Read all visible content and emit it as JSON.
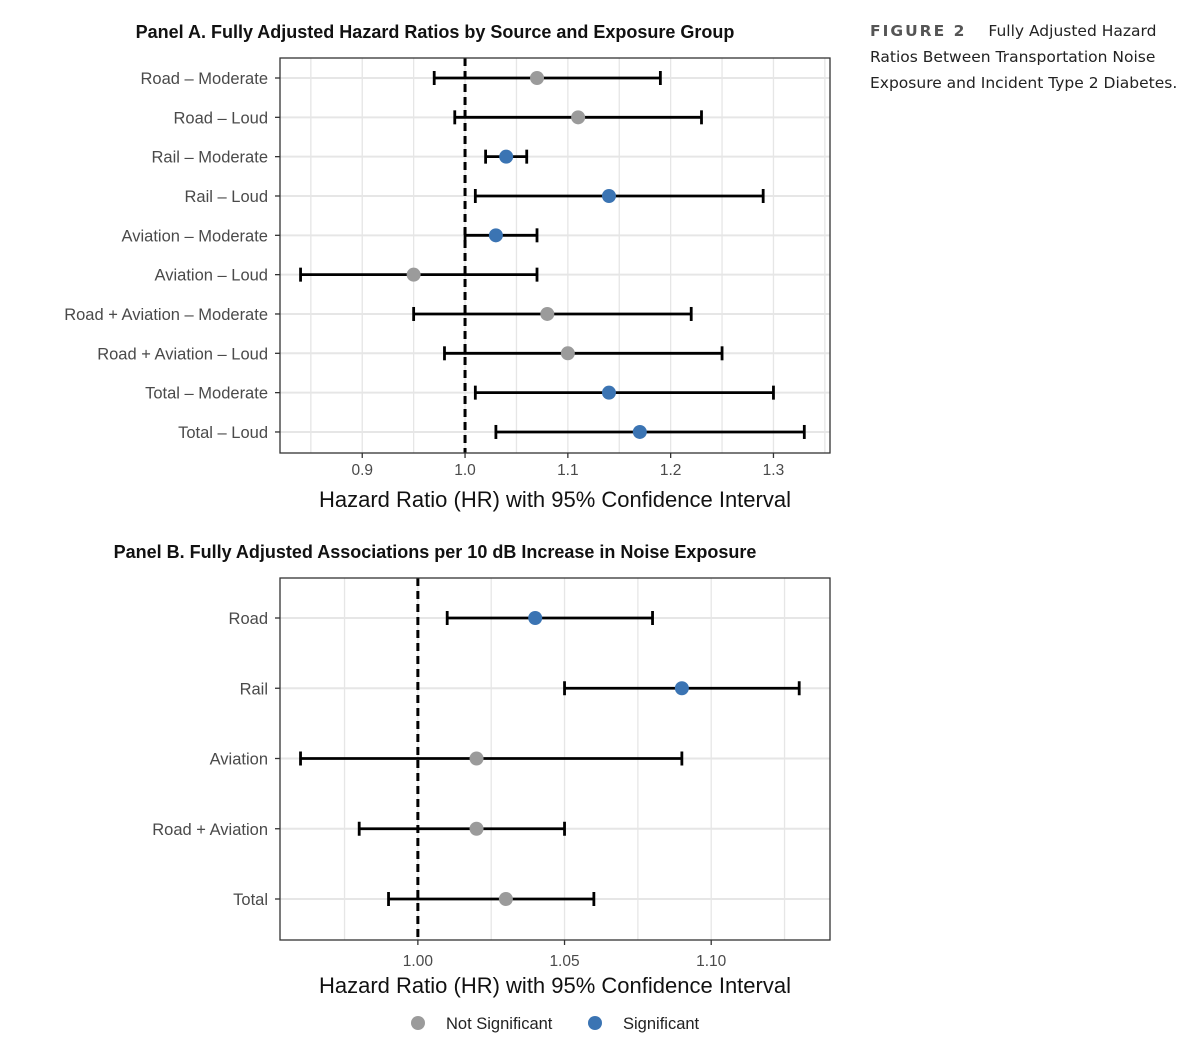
{
  "caption": {
    "label": "FIGURE 2",
    "text": "Fully Adjusted Hazard Ratios Between Transportation Noise Exposure and Incident Type 2 Diabetes."
  },
  "colors": {
    "significant": "#3b74b3",
    "not_significant": "#9b9b9b",
    "grid": "#e6e6e6",
    "bar": "#000000"
  },
  "chart_data": [
    {
      "type": "scatter",
      "subtype": "forest-plot",
      "title": "Panel A. Fully Adjusted Hazard Ratios by Source and Exposure Group",
      "xlabel": "Hazard Ratio (HR) with 95% Confidence Interval",
      "ylabel": "",
      "xlim": [
        0.82,
        1.355
      ],
      "xticks": [
        0.9,
        1.0,
        1.1,
        1.2,
        1.3
      ],
      "xtick_labels": [
        "0.9",
        "1.0",
        "1.1",
        "1.2",
        "1.3"
      ],
      "reference_line": 1.0,
      "rows": [
        {
          "label": "Road – Moderate",
          "hr": 1.07,
          "lower": 0.97,
          "upper": 1.19,
          "significant": false
        },
        {
          "label": "Road – Loud",
          "hr": 1.11,
          "lower": 0.99,
          "upper": 1.23,
          "significant": false
        },
        {
          "label": "Rail – Moderate",
          "hr": 1.04,
          "lower": 1.02,
          "upper": 1.06,
          "significant": true
        },
        {
          "label": "Rail – Loud",
          "hr": 1.14,
          "lower": 1.01,
          "upper": 1.29,
          "significant": true
        },
        {
          "label": "Aviation – Moderate",
          "hr": 1.03,
          "lower": 1.0,
          "upper": 1.07,
          "significant": true
        },
        {
          "label": "Aviation – Loud",
          "hr": 0.95,
          "lower": 0.84,
          "upper": 1.07,
          "significant": false
        },
        {
          "label": "Road + Aviation – Moderate",
          "hr": 1.08,
          "lower": 0.95,
          "upper": 1.22,
          "significant": false
        },
        {
          "label": "Road + Aviation – Loud",
          "hr": 1.1,
          "lower": 0.98,
          "upper": 1.25,
          "significant": false
        },
        {
          "label": "Total – Moderate",
          "hr": 1.14,
          "lower": 1.01,
          "upper": 1.3,
          "significant": true
        },
        {
          "label": "Total – Loud",
          "hr": 1.17,
          "lower": 1.03,
          "upper": 1.33,
          "significant": true
        }
      ]
    },
    {
      "type": "scatter",
      "subtype": "forest-plot",
      "title": "Panel B. Fully Adjusted Associations per 10 dB Increase in Noise Exposure",
      "xlabel": "Hazard Ratio (HR) with 95% Confidence Interval",
      "ylabel": "",
      "xlim": [
        0.953,
        1.1405
      ],
      "xticks": [
        1.0,
        1.05,
        1.1
      ],
      "xtick_labels": [
        "1.00",
        "1.05",
        "1.10"
      ],
      "reference_line": 1.0,
      "rows": [
        {
          "label": "Road",
          "hr": 1.04,
          "lower": 1.01,
          "upper": 1.08,
          "significant": true
        },
        {
          "label": "Rail",
          "hr": 1.09,
          "lower": 1.05,
          "upper": 1.13,
          "significant": true
        },
        {
          "label": "Aviation",
          "hr": 1.02,
          "lower": 0.96,
          "upper": 1.09,
          "significant": false
        },
        {
          "label": "Road + Aviation",
          "hr": 1.02,
          "lower": 0.98,
          "upper": 1.05,
          "significant": false
        },
        {
          "label": "Total",
          "hr": 1.03,
          "lower": 0.99,
          "upper": 1.06,
          "significant": false
        }
      ]
    }
  ],
  "legend": {
    "position": "bottom",
    "items": [
      {
        "label": "Not Significant",
        "significant": false
      },
      {
        "label": "Significant",
        "significant": true
      }
    ]
  }
}
